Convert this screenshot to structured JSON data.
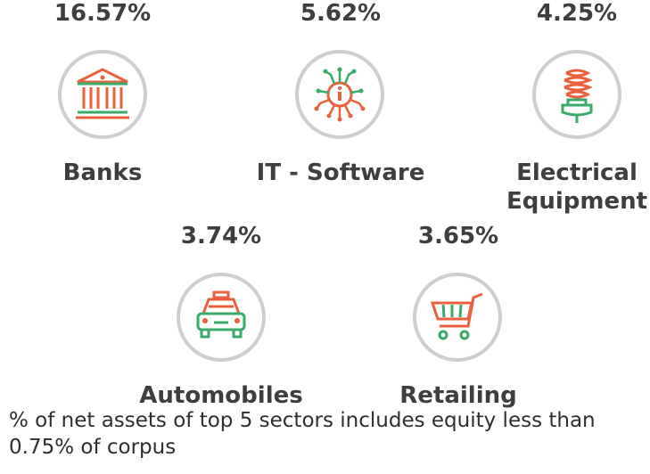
{
  "sectors": [
    {
      "name": "Banks",
      "percent": "16.57%",
      "icon": "bank-icon"
    },
    {
      "name": "IT - Software",
      "percent": "5.62%",
      "icon": "chip-icon"
    },
    {
      "name": "Electrical\nEquipment",
      "percent": "4.25%",
      "icon": "lightbulb-icon"
    },
    {
      "name": "Automobiles",
      "percent": "3.74%",
      "icon": "car-icon"
    },
    {
      "name": "Retailing",
      "percent": "3.65%",
      "icon": "shopping-cart-icon"
    }
  ],
  "footnote": "% of net assets of top 5 sectors includes equity less than 0.75% of corpus",
  "colors": {
    "orange": "#e8603c",
    "green": "#3aaa6a",
    "ring": "#cfcfcf",
    "text": "#3e3e3e"
  }
}
